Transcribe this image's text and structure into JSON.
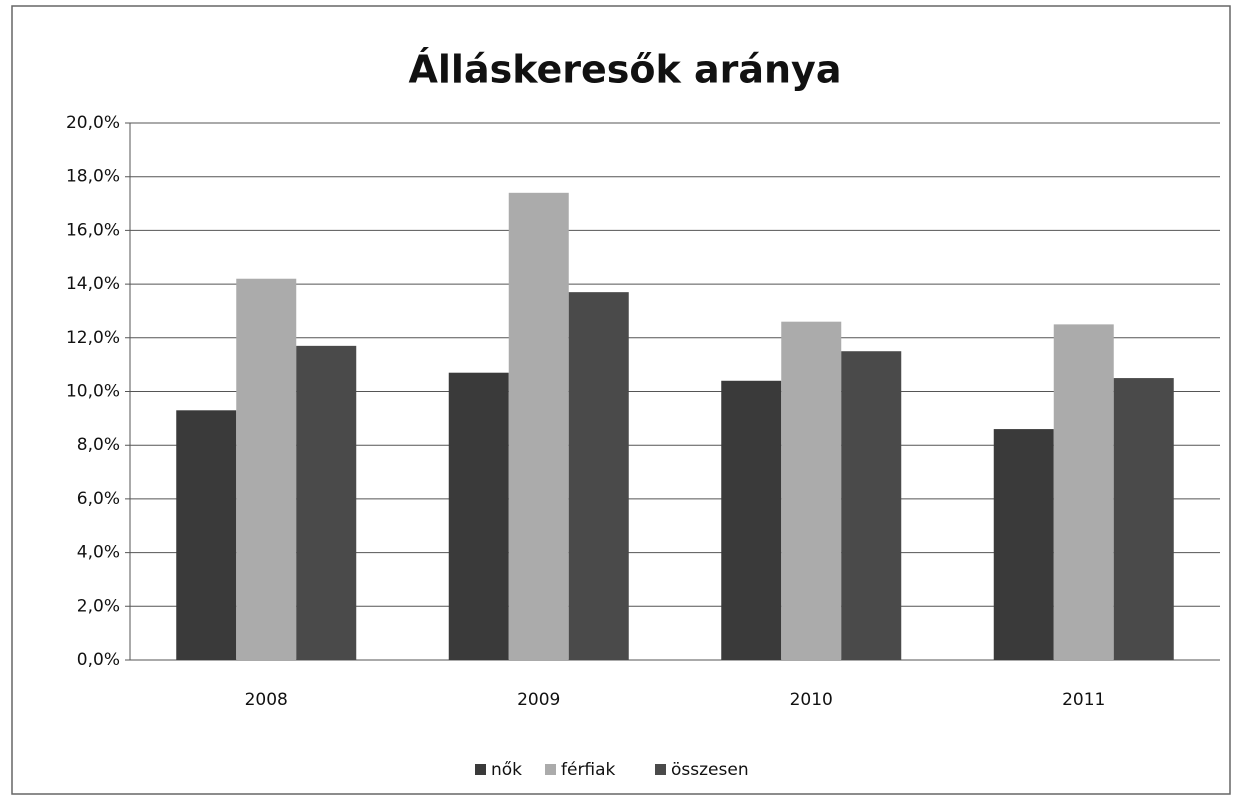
{
  "chart_data": {
    "type": "bar",
    "title": "Álláskeresők aránya",
    "categories": [
      "2008",
      "2009",
      "2010",
      "2011"
    ],
    "series": [
      {
        "name": "nők",
        "color": "#3a3a3a",
        "values": [
          9.3,
          10.7,
          10.4,
          8.6
        ]
      },
      {
        "name": "férfiak",
        "color": "#ababab",
        "values": [
          14.2,
          17.4,
          12.6,
          12.5
        ]
      },
      {
        "name": "összesen",
        "color": "#4a4a4a",
        "values": [
          11.7,
          13.7,
          11.5,
          10.5
        ]
      }
    ],
    "ylim": [
      0,
      20
    ],
    "yticks": [
      {
        "value": 0,
        "label": "0,0%"
      },
      {
        "value": 2,
        "label": "2,0%"
      },
      {
        "value": 4,
        "label": "4,0%"
      },
      {
        "value": 6,
        "label": "6,0%"
      },
      {
        "value": 8,
        "label": "8,0%"
      },
      {
        "value": 10,
        "label": "10,0%"
      },
      {
        "value": 12,
        "label": "12,0%"
      },
      {
        "value": 14,
        "label": "14,0%"
      },
      {
        "value": 16,
        "label": "16,0%"
      },
      {
        "value": 18,
        "label": "18,0%"
      },
      {
        "value": 20,
        "label": "20,0%"
      }
    ],
    "grid": true,
    "legend": "bottom"
  }
}
